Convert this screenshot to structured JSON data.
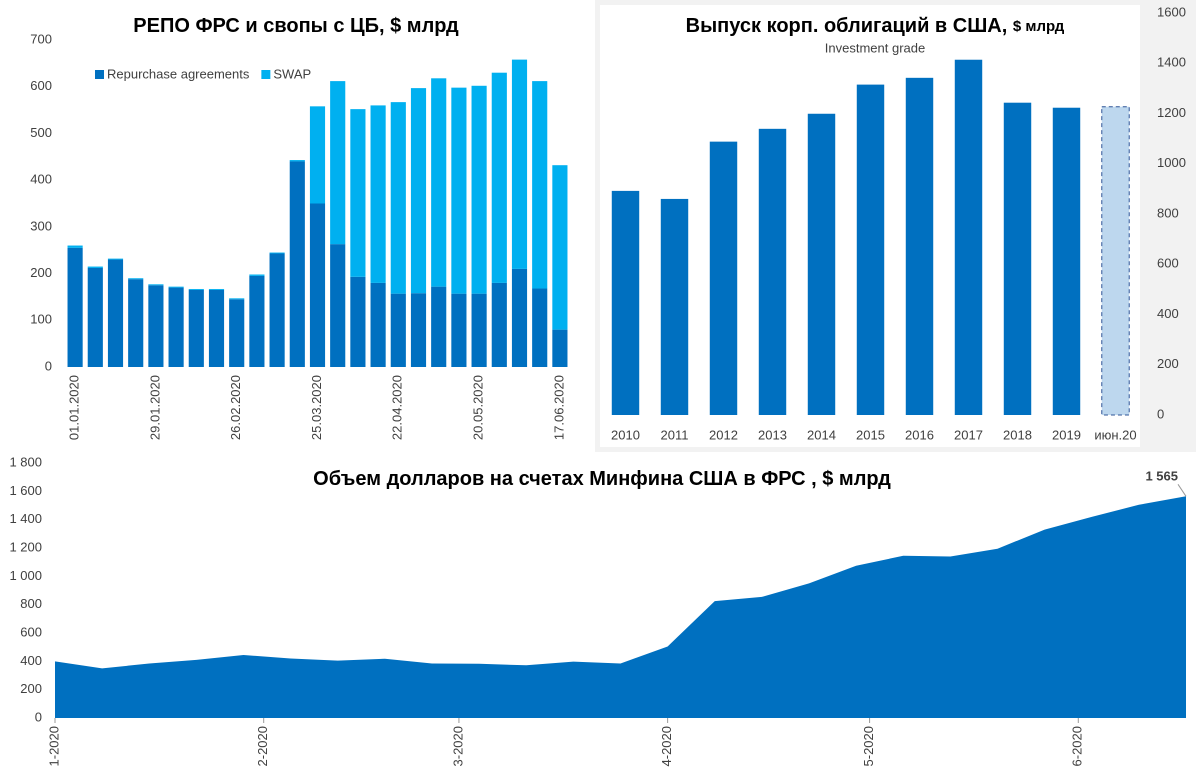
{
  "chart_data": [
    {
      "type": "bar",
      "stacked": true,
      "title": "РЕПО ФРС и свопы с ЦБ, $ млрд",
      "legend": "upper left",
      "categories": [
        "01.01.2020",
        null,
        null,
        null,
        "29.01.2020",
        null,
        null,
        null,
        "26.02.2020",
        null,
        null,
        null,
        "25.03.2020",
        null,
        null,
        null,
        "22.04.2020",
        null,
        null,
        null,
        "20.05.2020",
        null,
        null,
        null,
        "17.06.2020"
      ],
      "series": [
        {
          "name": "Repurchase agreements",
          "color": "#0070c0",
          "values": [
            255,
            212,
            230,
            188,
            175,
            170,
            165,
            165,
            145,
            195,
            243,
            440,
            350,
            263,
            193,
            180,
            157,
            158,
            172,
            157,
            157,
            180,
            210,
            168,
            80
          ]
        },
        {
          "name": "SWAP",
          "color": "#00b0f0",
          "values": [
            5,
            3,
            2,
            2,
            2,
            2,
            2,
            2,
            2,
            3,
            2,
            3,
            208,
            349,
            359,
            380,
            410,
            439,
            446,
            441,
            445,
            450,
            448,
            444,
            352
          ]
        }
      ],
      "ylim": [
        0,
        700
      ],
      "yticks": [
        0,
        100,
        200,
        300,
        400,
        500,
        600,
        700
      ],
      "grid": false
    },
    {
      "type": "bar",
      "title": "Выпуск корп. облигаций в США,",
      "unit": "$ млрд",
      "subtitle": "Investment grade",
      "y_axis_side": "right",
      "categories": [
        "2010",
        "2011",
        "2012",
        "2013",
        "2014",
        "2015",
        "2016",
        "2017",
        "2018",
        "2019",
        "июн.20"
      ],
      "values": [
        892,
        860,
        1088,
        1139,
        1199,
        1315,
        1342,
        1414,
        1243,
        1223,
        1227
      ],
      "colors": [
        "#0070c0",
        "#0070c0",
        "#0070c0",
        "#0070c0",
        "#0070c0",
        "#0070c0",
        "#0070c0",
        "#0070c0",
        "#0070c0",
        "#0070c0",
        "#bdd7ee"
      ],
      "dashed": [
        false,
        false,
        false,
        false,
        false,
        false,
        false,
        false,
        false,
        false,
        true
      ],
      "ylim": [
        0,
        1600
      ],
      "yticks": [
        0,
        200,
        400,
        600,
        800,
        1000,
        1200,
        1400,
        1600
      ],
      "grid": false
    },
    {
      "type": "area",
      "title": "Объем долларов на счетах Минфина США в ФРС , $ млрд",
      "color": "#0070c0",
      "x": [
        0,
        7,
        14,
        21,
        28,
        35,
        42,
        49,
        56,
        63,
        70,
        77,
        84,
        91,
        98,
        105,
        112,
        119,
        126,
        133,
        140,
        147,
        154,
        161,
        168
      ],
      "values": [
        400,
        350,
        385,
        410,
        445,
        420,
        405,
        418,
        385,
        383,
        372,
        398,
        385,
        505,
        825,
        855,
        950,
        1075,
        1145,
        1140,
        1195,
        1330,
        1420,
        1505,
        1565
      ],
      "value_labels": [
        null,
        null,
        null,
        null,
        null,
        null,
        null,
        null,
        null,
        null,
        null,
        null,
        null,
        null,
        null,
        null,
        null,
        null,
        null,
        null,
        null,
        null,
        null,
        null,
        "1 565"
      ],
      "xlim": [
        0,
        168
      ],
      "xticks": [
        {
          "value": 0,
          "label": "1-2020"
        },
        {
          "value": 31,
          "label": "2-2020"
        },
        {
          "value": 60,
          "label": "3-2020"
        },
        {
          "value": 91,
          "label": "4-2020"
        },
        {
          "value": 121,
          "label": "5-2020"
        },
        {
          "value": 152,
          "label": "6-2020"
        }
      ],
      "ylim": [
        0,
        1800
      ],
      "yticks": [
        0,
        200,
        400,
        600,
        800,
        {
          "value": 1000,
          "label": "1 000"
        },
        {
          "value": 1200,
          "label": "1 200"
        },
        {
          "value": 1400,
          "label": "1 400"
        },
        {
          "value": 1600,
          "label": "1 600"
        },
        {
          "value": 1800,
          "label": "1 800"
        }
      ],
      "grid": false
    }
  ]
}
